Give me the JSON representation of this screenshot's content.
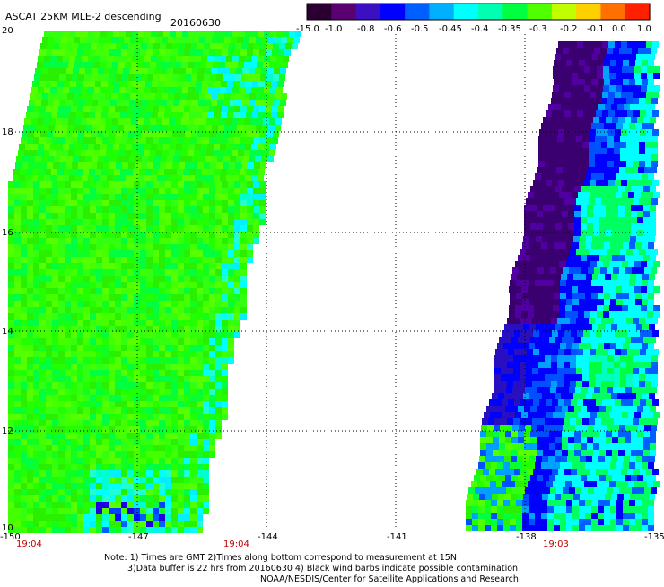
{
  "header": {
    "title": "ASCAT 25KM MLE-2 descending",
    "date": "20160630"
  },
  "colorbar": {
    "ticks": [
      "-15.0",
      "-1.0",
      "-0.8",
      "-0.6",
      "-0.5",
      "-0.45",
      "-0.4",
      "-0.35",
      "-0.3",
      "-0.2",
      "-0.1",
      "0.0",
      "1.0"
    ],
    "colors": [
      "#2a0030",
      "#5a0070",
      "#3a10c0",
      "#0000ff",
      "#0060ff",
      "#00b0ff",
      "#00ffff",
      "#00ffb0",
      "#00ff40",
      "#50ff00",
      "#c0ff00",
      "#ffd000",
      "#ff7000",
      "#ff2000"
    ]
  },
  "axes": {
    "x_ticks": [
      "-150",
      "-147",
      "-144",
      "-141",
      "-138",
      "-135"
    ],
    "y_ticks": [
      "20",
      "18",
      "16",
      "14",
      "12",
      "10"
    ]
  },
  "time_labels": [
    "19:04",
    "19:04",
    "19:03"
  ],
  "footer": {
    "line1": "Note: 1) Times are GMT 2)Times along bottom correspond to measurement at 15N",
    "line2": "3)Data buffer is 22 hrs from 20160630 4) Black wind barbs indicate possible contamination",
    "line3": "NOAA/NESDIS/Center for Satellite Applications and Research"
  }
}
